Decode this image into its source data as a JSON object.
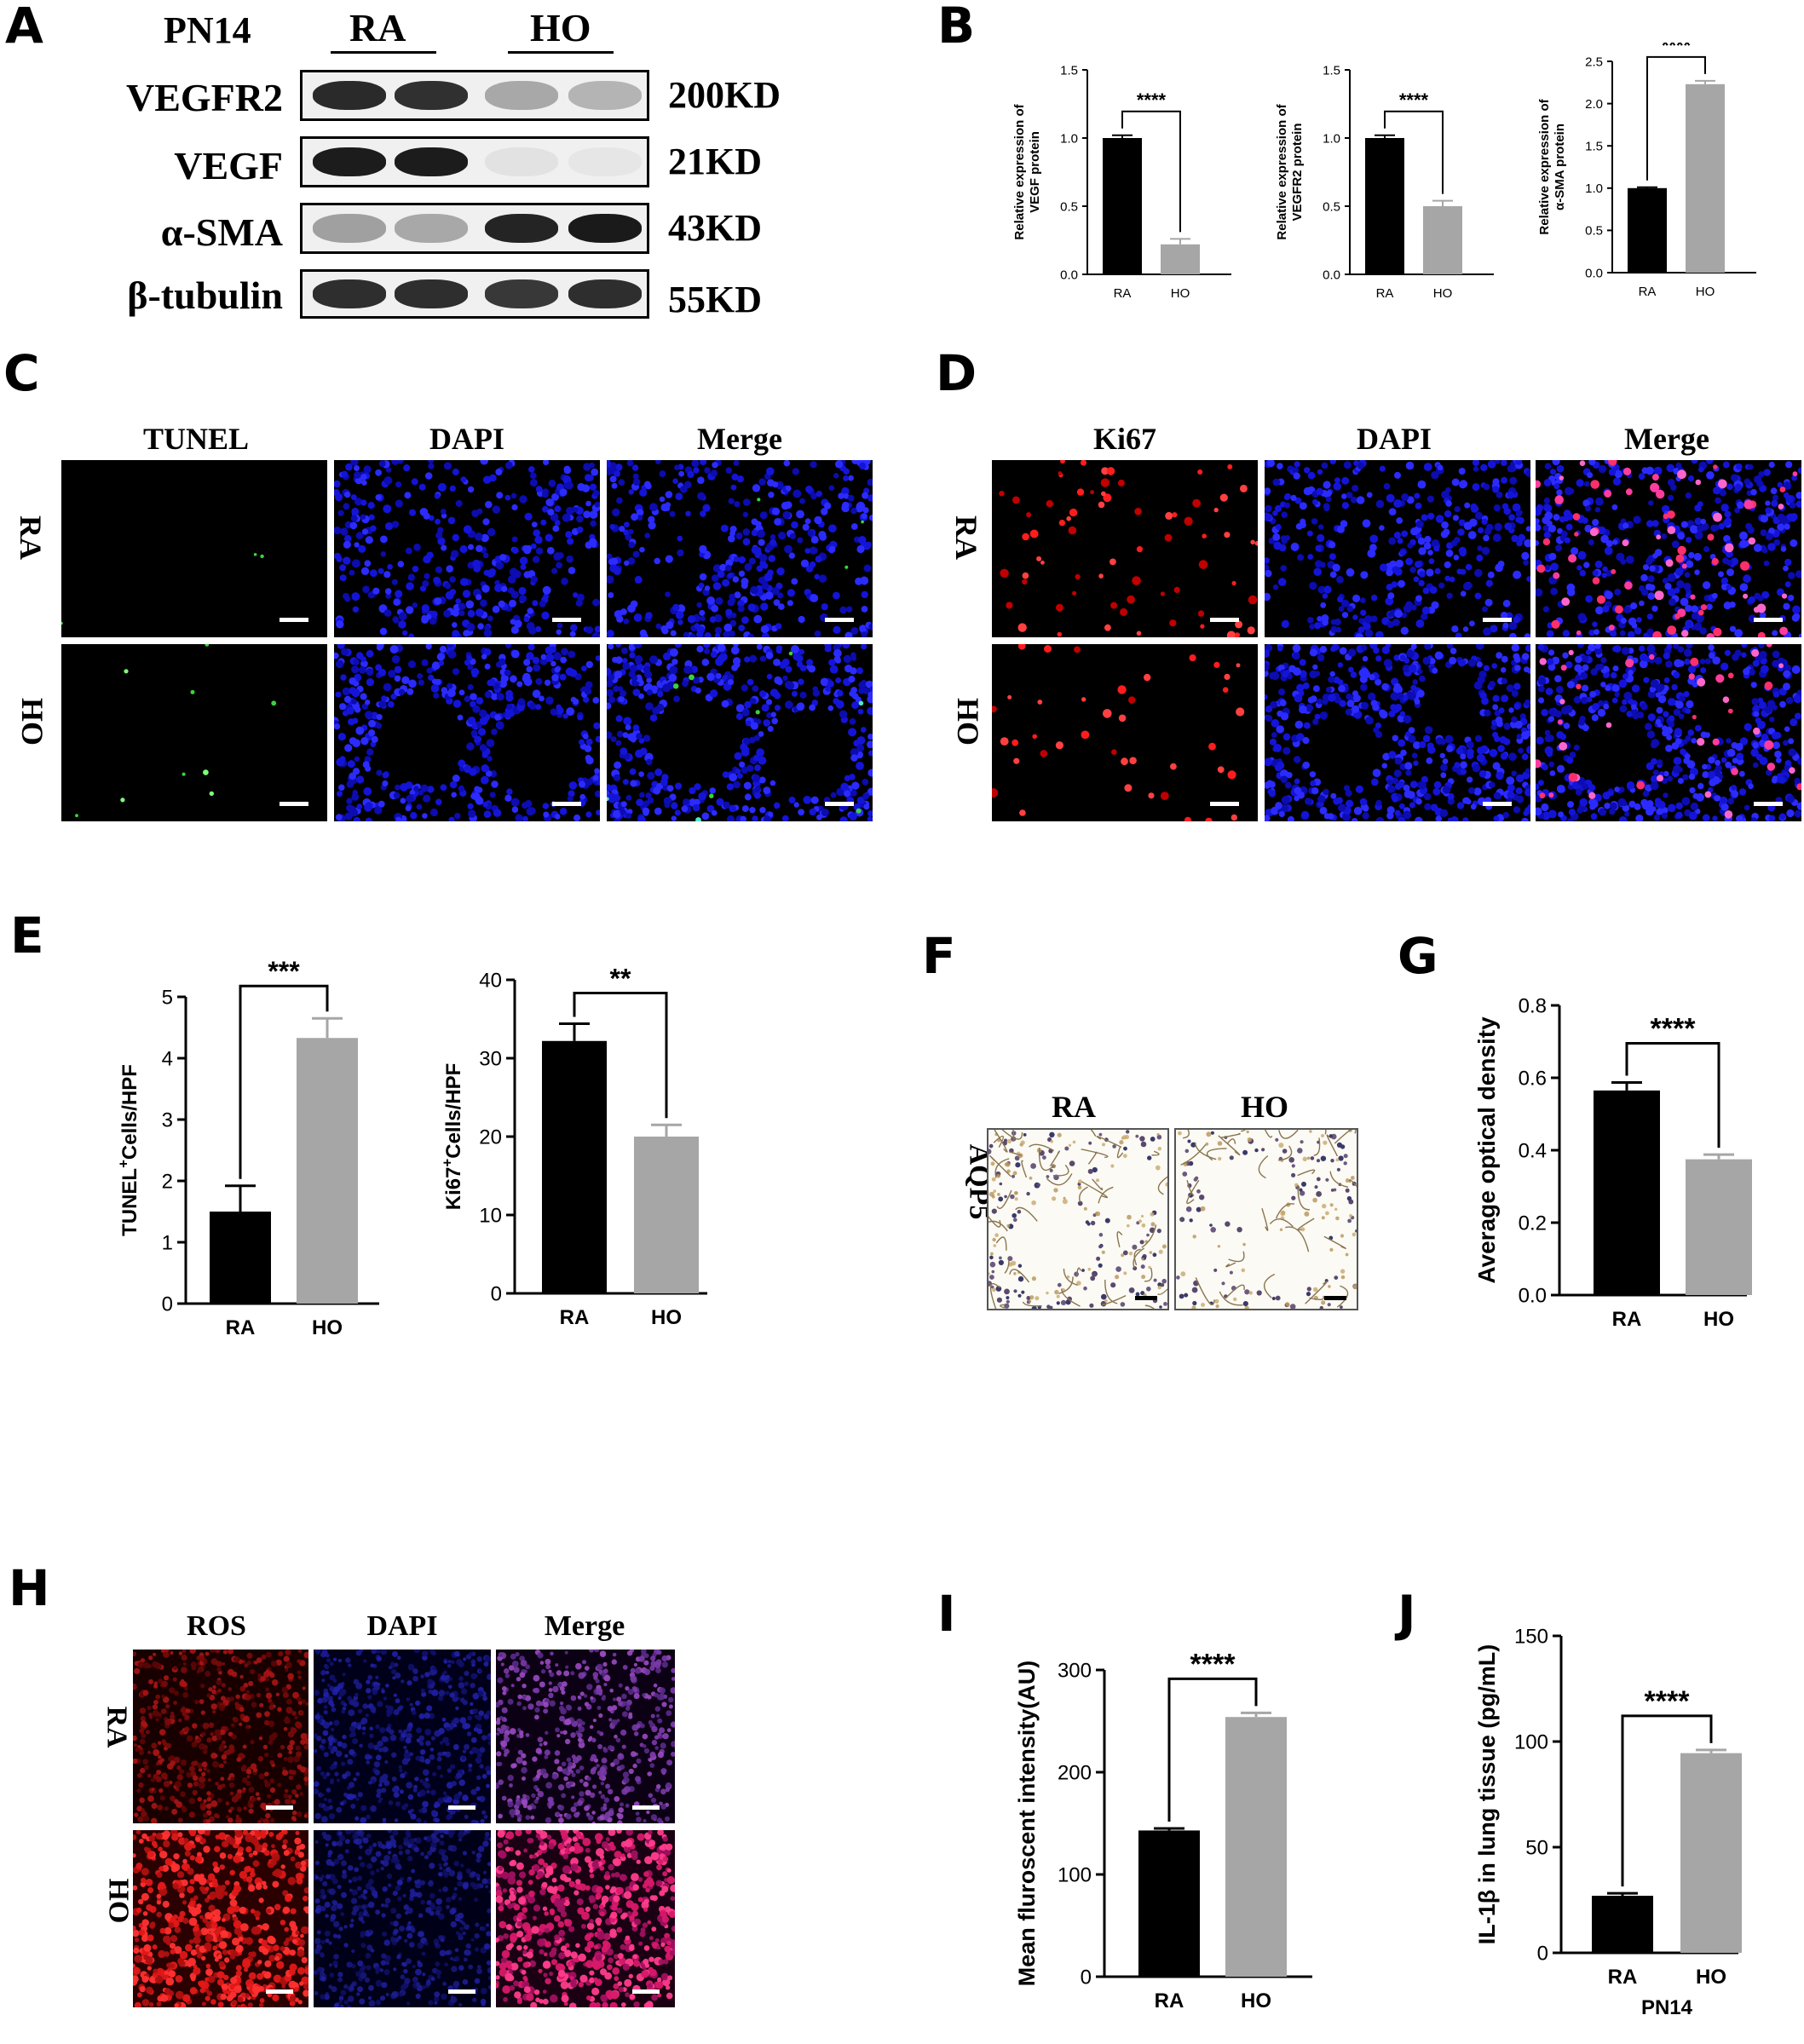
{
  "panel_letters": {
    "a": "A",
    "b": "B",
    "c": "C",
    "d": "D",
    "e": "E",
    "f": "F",
    "g": "G",
    "h": "H",
    "i": "I",
    "j": "J"
  },
  "western": {
    "timepoint": "PN14",
    "group_ra": "RA",
    "group_ho": "HO",
    "rows": [
      {
        "name": "VEGFR2",
        "size": "200KD"
      },
      {
        "name": "VEGF",
        "size": "21KD"
      },
      {
        "name": "α-SMA",
        "size": "43KD"
      },
      {
        "name": "β-tubulin",
        "size": "55KD"
      }
    ]
  },
  "panel_c": {
    "cols": [
      "TUNEL",
      "DAPI",
      "Merge"
    ],
    "rows": [
      "RA",
      "HO"
    ]
  },
  "panel_d": {
    "cols": [
      "Ki67",
      "DAPI",
      "Merge"
    ],
    "rows": [
      "RA",
      "HO"
    ]
  },
  "panel_f": {
    "cols": [
      "RA",
      "HO"
    ],
    "row": "AQP5"
  },
  "panel_h": {
    "cols": [
      "ROS",
      "DAPI",
      "Merge"
    ],
    "rows": [
      "RA",
      "HO"
    ]
  },
  "colors": {
    "ra": "#000000",
    "ho": "#a6a6a6",
    "dapi": "#1414d8",
    "tunel": "#3ad43a",
    "ki67": "#ff1c1c",
    "ros": "#d41818"
  },
  "chart_data": [
    {
      "panel": "B1",
      "type": "bar",
      "categories": [
        "RA",
        "HO"
      ],
      "values": [
        1.0,
        0.22
      ],
      "errors": [
        0.02,
        0.04
      ],
      "ylabel": "Relative expression of VEGF protein",
      "ylim": [
        0,
        1.5
      ],
      "yticks": [
        "0.0",
        "0.5",
        "1.0",
        "1.5"
      ],
      "significance": "****"
    },
    {
      "panel": "B2",
      "type": "bar",
      "categories": [
        "RA",
        "HO"
      ],
      "values": [
        1.0,
        0.5
      ],
      "errors": [
        0.02,
        0.04
      ],
      "ylabel": "Relative expression of VEGFR2 protein",
      "ylim": [
        0,
        1.5
      ],
      "yticks": [
        "0.0",
        "0.5",
        "1.0",
        "1.5"
      ],
      "significance": "****"
    },
    {
      "panel": "B3",
      "type": "bar",
      "categories": [
        "RA",
        "HO"
      ],
      "values": [
        1.0,
        2.23
      ],
      "errors": [
        0.01,
        0.04
      ],
      "ylabel": "Relative expression of α-SMA protein",
      "ylim": [
        0,
        2.5
      ],
      "yticks": [
        "0.0",
        "0.5",
        "1.0",
        "1.5",
        "2.0",
        "2.5"
      ],
      "significance": "****"
    },
    {
      "panel": "E1",
      "type": "bar",
      "categories": [
        "RA",
        "HO"
      ],
      "values": [
        1.5,
        4.33
      ],
      "errors": [
        0.42,
        0.32
      ],
      "ylabel_prefix": "TUNEL",
      "ylabel_sup": "+",
      "ylabel_suffix": "Cells/HPF",
      "ylim": [
        0,
        5
      ],
      "yticks": [
        "0",
        "1",
        "2",
        "3",
        "4",
        "5"
      ],
      "significance": "***"
    },
    {
      "panel": "E2",
      "type": "bar",
      "categories": [
        "RA",
        "HO"
      ],
      "values": [
        32.2,
        20.0
      ],
      "errors": [
        2.2,
        1.5
      ],
      "ylabel_prefix": "Ki67",
      "ylabel_sup": "+",
      "ylabel_suffix": "Cells/HPF",
      "ylim": [
        0,
        40
      ],
      "yticks": [
        "0",
        "10",
        "20",
        "30",
        "40"
      ],
      "significance": "**"
    },
    {
      "panel": "G",
      "type": "bar",
      "categories": [
        "RA",
        "HO"
      ],
      "values": [
        0.565,
        0.375
      ],
      "errors": [
        0.022,
        0.013
      ],
      "ylabel": "Average optical density",
      "ylim": [
        0,
        0.8
      ],
      "yticks": [
        "0.0",
        "0.2",
        "0.4",
        "0.6",
        "0.8"
      ],
      "significance": "****"
    },
    {
      "panel": "I",
      "type": "bar",
      "categories": [
        "RA",
        "HO"
      ],
      "values": [
        143,
        254
      ],
      "errors": [
        2,
        4
      ],
      "ylabel": "Mean fluroscent intensity(AU)",
      "ylim": [
        0,
        300
      ],
      "yticks": [
        "0",
        "100",
        "200",
        "300"
      ],
      "significance": "****"
    },
    {
      "panel": "J",
      "type": "bar",
      "categories": [
        "RA",
        "HO"
      ],
      "values": [
        27,
        94.5
      ],
      "errors": [
        1.2,
        1.5
      ],
      "ylabel": "IL-1β in lung tissue (pg/mL)",
      "xlabel": "PN14",
      "ylim": [
        0,
        150
      ],
      "yticks": [
        "0",
        "50",
        "100",
        "150"
      ],
      "significance": "****"
    }
  ]
}
